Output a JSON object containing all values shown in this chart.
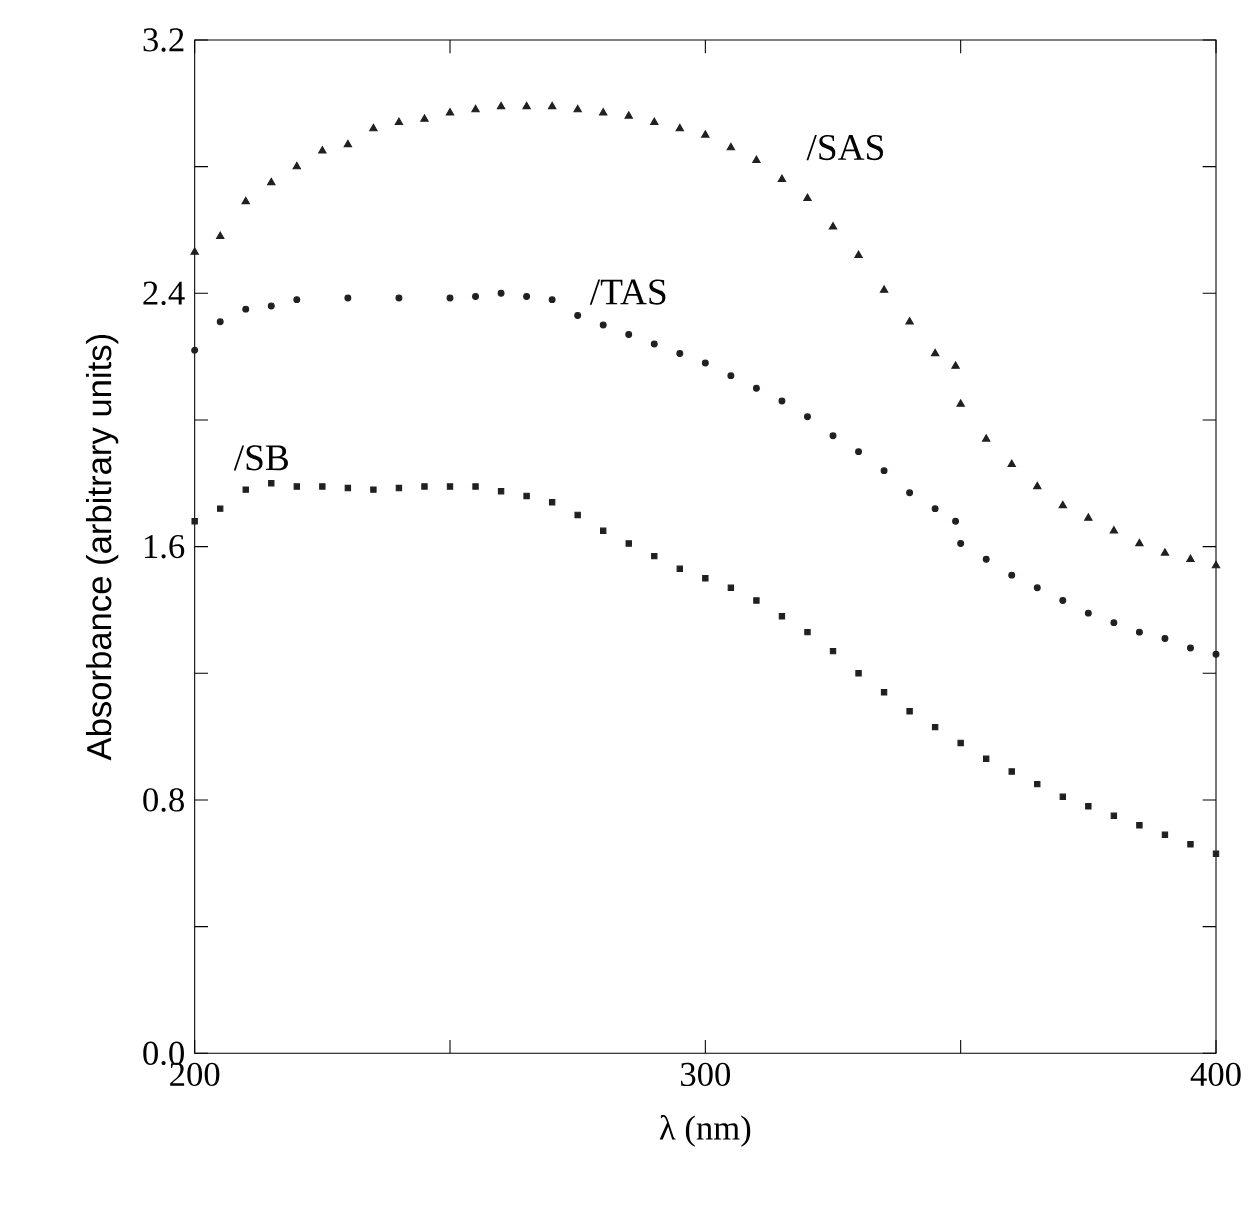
{
  "chart_data": {
    "type": "scatter",
    "xlabel": "λ  (nm)",
    "ylabel": "Absorbance (arbitrary units)",
    "xlim": [
      200,
      400
    ],
    "ylim": [
      0,
      3.2
    ],
    "xticks": [
      200,
      {
        "value": 250,
        "label": null
      },
      300,
      {
        "value": 350,
        "label": null
      },
      400
    ],
    "yticks": [
      {
        "value": 0,
        "label": "0.0"
      },
      {
        "value": 0.4,
        "label": null
      },
      0.8,
      {
        "value": 1.2,
        "label": null
      },
      1.6,
      {
        "value": 2.0,
        "label": null
      },
      2.4,
      {
        "value": 2.8,
        "label": null
      },
      3.2
    ],
    "legend": false,
    "grid": false,
    "series": [
      {
        "name": "/SAS",
        "color": "#231f20",
        "marker": "triangle",
        "x": [
          200,
          205,
          210,
          215,
          220,
          225,
          230,
          235,
          240,
          245,
          250,
          255,
          260,
          265,
          270,
          275,
          280,
          285,
          290,
          295,
          300,
          305,
          310,
          315,
          320,
          325,
          330,
          335,
          340,
          345,
          349,
          350,
          355,
          360,
          365,
          370,
          375,
          380,
          385,
          390,
          395,
          400
        ],
        "values": [
          2.53,
          2.58,
          2.69,
          2.75,
          2.8,
          2.85,
          2.87,
          2.92,
          2.94,
          2.95,
          2.97,
          2.98,
          2.99,
          2.99,
          2.99,
          2.98,
          2.97,
          2.96,
          2.94,
          2.92,
          2.9,
          2.86,
          2.82,
          2.76,
          2.7,
          2.61,
          2.52,
          2.41,
          2.31,
          2.21,
          2.17,
          2.05,
          1.94,
          1.86,
          1.79,
          1.73,
          1.69,
          1.65,
          1.61,
          1.58,
          1.56,
          1.54
        ]
      },
      {
        "name": "/TAS",
        "color": "#231f20",
        "marker": "circle",
        "x": [
          200,
          205,
          210,
          215,
          220,
          230,
          240,
          250,
          255,
          260,
          265,
          270,
          275,
          280,
          285,
          290,
          295,
          300,
          305,
          310,
          315,
          320,
          325,
          330,
          335,
          340,
          345,
          349,
          350,
          355,
          360,
          365,
          370,
          375,
          380,
          385,
          390,
          395,
          400
        ],
        "values": [
          2.22,
          2.31,
          2.35,
          2.36,
          2.38,
          2.385,
          2.385,
          2.385,
          2.39,
          2.4,
          2.39,
          2.38,
          2.33,
          2.3,
          2.27,
          2.24,
          2.21,
          2.18,
          2.14,
          2.1,
          2.06,
          2.01,
          1.95,
          1.9,
          1.84,
          1.77,
          1.72,
          1.68,
          1.61,
          1.56,
          1.51,
          1.47,
          1.43,
          1.39,
          1.36,
          1.33,
          1.31,
          1.28,
          1.26
        ]
      },
      {
        "name": "/SB",
        "color": "#231f20",
        "marker": "square",
        "x": [
          200,
          205,
          210,
          215,
          220,
          225,
          230,
          235,
          240,
          245,
          250,
          255,
          260,
          265,
          270,
          275,
          280,
          285,
          290,
          295,
          300,
          305,
          310,
          315,
          320,
          325,
          330,
          335,
          340,
          345,
          350,
          355,
          360,
          365,
          370,
          375,
          380,
          385,
          390,
          395,
          400
        ],
        "values": [
          1.68,
          1.72,
          1.78,
          1.8,
          1.79,
          1.79,
          1.785,
          1.78,
          1.785,
          1.79,
          1.79,
          1.79,
          1.775,
          1.76,
          1.74,
          1.7,
          1.65,
          1.61,
          1.57,
          1.53,
          1.5,
          1.47,
          1.43,
          1.38,
          1.33,
          1.27,
          1.2,
          1.14,
          1.08,
          1.03,
          0.98,
          0.93,
          0.89,
          0.85,
          0.81,
          0.78,
          0.75,
          0.72,
          0.69,
          0.66,
          0.63
        ]
      }
    ]
  }
}
